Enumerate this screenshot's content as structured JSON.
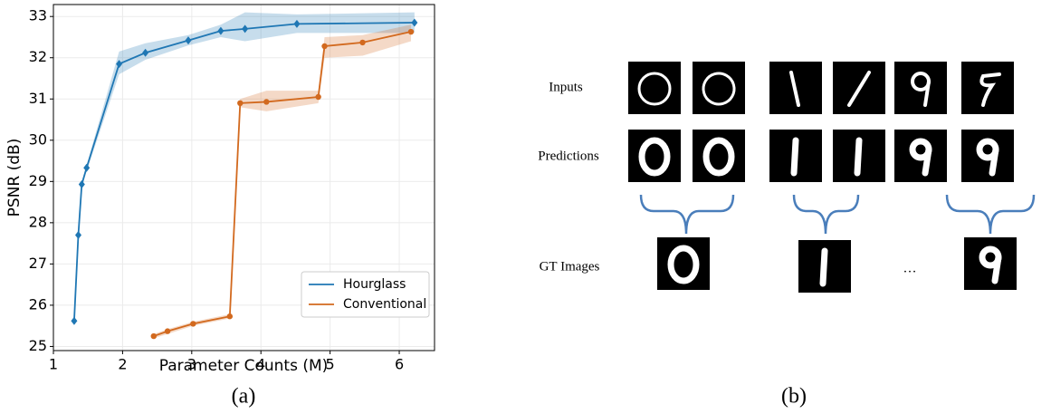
{
  "chart_data": {
    "type": "line",
    "xlabel": "Parameter Counts (M)",
    "ylabel": "PSNR (dB)",
    "xlim": [
      1,
      6.51
    ],
    "ylim": [
      24.9,
      33.29
    ],
    "xticks": [
      1,
      2,
      3,
      4,
      5,
      6
    ],
    "yticks": [
      25,
      26,
      27,
      28,
      29,
      30,
      31,
      32,
      33
    ],
    "grid": true,
    "legend": "lower right",
    "series": [
      {
        "name": "Hourglass",
        "color": "#1f77b4",
        "marker": "diamond",
        "x": [
          1.3,
          1.36,
          1.41,
          1.48,
          1.95,
          2.33,
          2.95,
          3.42,
          3.77,
          4.52,
          6.22
        ],
        "values": [
          25.62,
          27.7,
          28.93,
          29.33,
          31.85,
          32.12,
          32.42,
          32.65,
          32.7,
          32.82,
          32.85
        ],
        "lower": [
          25.6,
          27.6,
          28.85,
          29.25,
          31.6,
          31.95,
          32.3,
          32.5,
          32.4,
          32.6,
          32.6
        ],
        "upper": [
          25.65,
          27.8,
          29.0,
          29.4,
          32.15,
          32.35,
          32.55,
          32.8,
          33.1,
          33.05,
          33.1
        ]
      },
      {
        "name": "Conventional",
        "color": "#d2691e",
        "marker": "circle",
        "x": [
          2.45,
          2.65,
          3.02,
          3.55,
          3.7,
          4.08,
          4.83,
          4.92,
          5.47,
          6.17
        ],
        "values": [
          25.25,
          25.37,
          25.55,
          25.73,
          30.9,
          30.93,
          31.05,
          32.28,
          32.37,
          32.63
        ],
        "lower": [
          25.2,
          25.3,
          25.5,
          25.68,
          30.8,
          30.7,
          30.9,
          32.0,
          32.05,
          32.4
        ],
        "upper": [
          25.3,
          25.42,
          25.6,
          25.78,
          31.0,
          31.2,
          31.2,
          32.5,
          32.55,
          32.8
        ]
      }
    ]
  },
  "diagram": {
    "row_labels": [
      "Inputs",
      "Predictions",
      "GT Images"
    ],
    "ellipsis": "…"
  },
  "captions": [
    "(a)",
    "(b)"
  ]
}
